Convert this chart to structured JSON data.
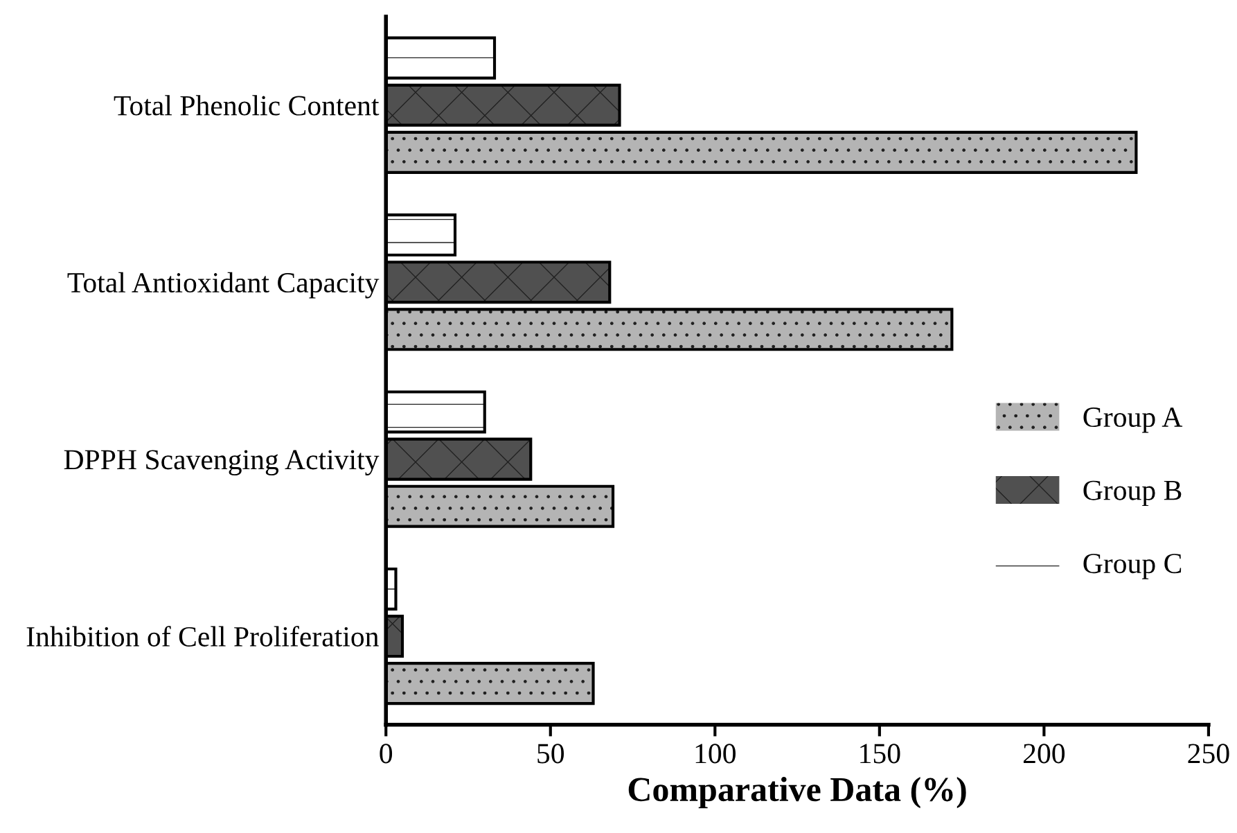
{
  "chart_data": {
    "type": "bar",
    "orientation": "horizontal",
    "xlabel": "Comparative Data (%)",
    "categories": [
      "Total Phenolic Content",
      "Total Antioxidant Capacity",
      "DPPH Scavenging Activity",
      "Inhibition of Cell Proliferation"
    ],
    "series": [
      {
        "name": "Group C",
        "color": "#ffffff",
        "values": [
          33,
          21,
          30,
          3
        ]
      },
      {
        "name": "Group B",
        "color": "#505050",
        "values": [
          71,
          68,
          44,
          5
        ]
      },
      {
        "name": "Group A",
        "color": "#b4b4b4",
        "values": [
          228,
          172,
          69,
          63
        ]
      }
    ],
    "xlim": [
      0,
      250
    ],
    "xticks": [
      0,
      50,
      100,
      150,
      200,
      250
    ],
    "grid": false,
    "legend": "right"
  }
}
